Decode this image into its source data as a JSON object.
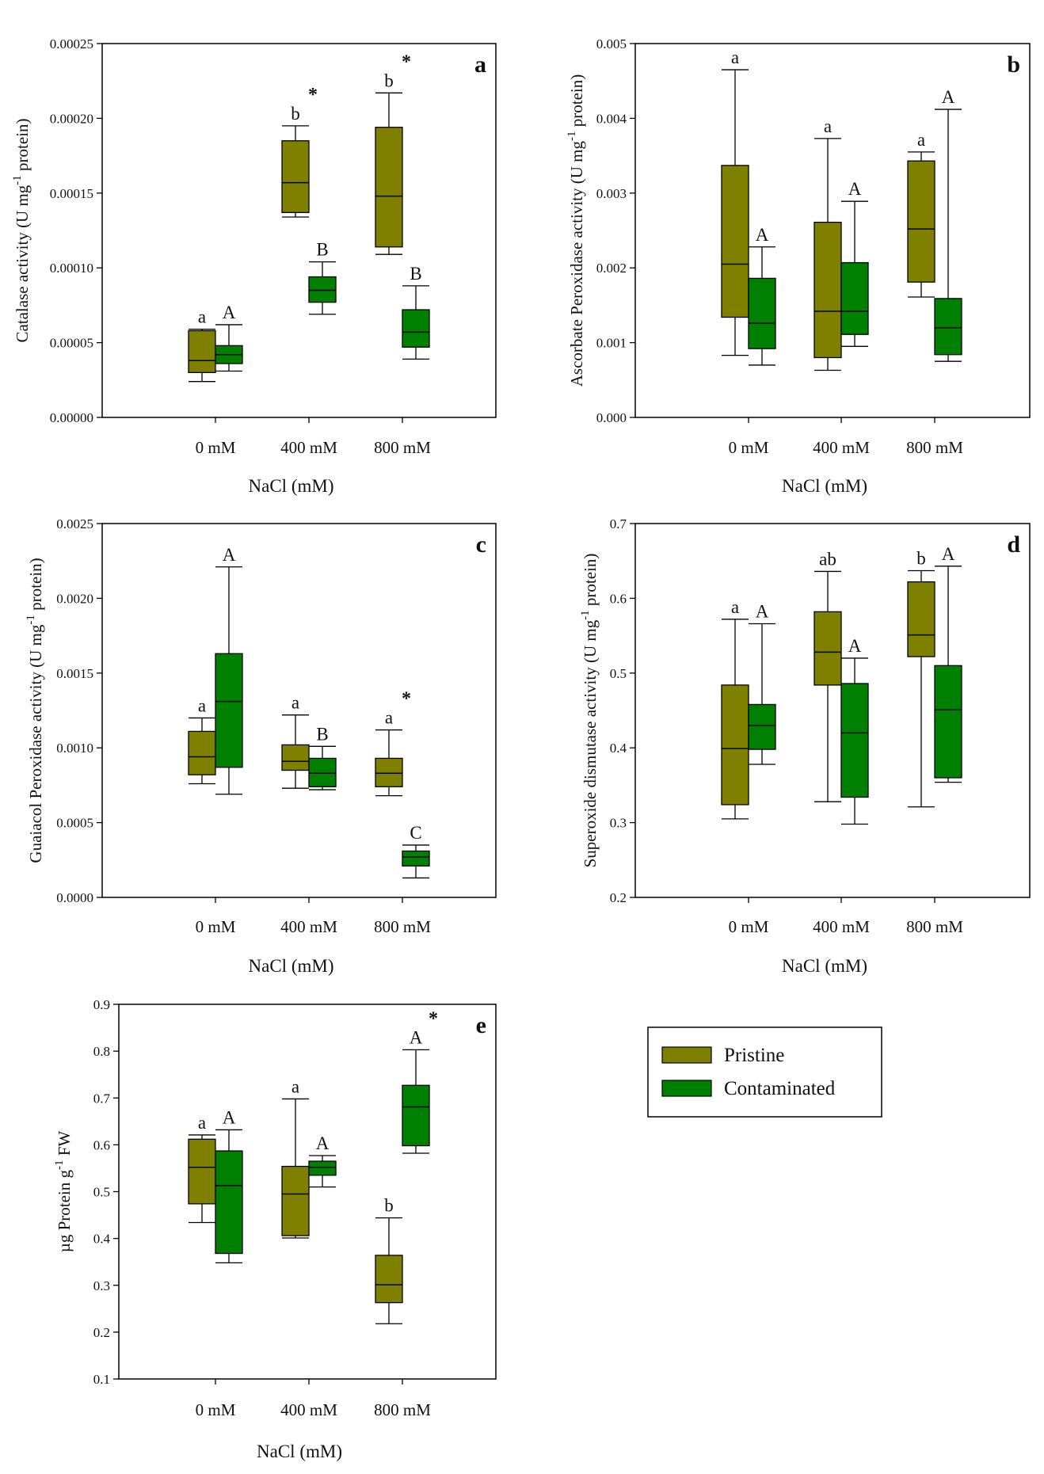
{
  "legend": {
    "items": [
      {
        "label": "Pristine",
        "color": "#808000"
      },
      {
        "label": "Contaminated",
        "color": "#008000"
      }
    ]
  },
  "chart_data": [
    {
      "type": "box",
      "panel": "a",
      "title": "",
      "xlabel": "NaCl (mM)",
      "ylabel_main": "Catalase activity (U mg",
      "ylabel_sup": "-1",
      "ylabel_tail": " protein)",
      "ylim": [
        0,
        0.00025
      ],
      "yticks": [
        "0.00000",
        "0.00005",
        "0.00010",
        "0.00015",
        "0.00020",
        "0.00025"
      ],
      "yticks_values": [
        0,
        5e-05,
        0.0001,
        0.00015,
        0.0002,
        0.00025
      ],
      "categories": [
        "0 mM",
        "400 mM",
        "800 mM"
      ],
      "series": [
        {
          "name": "Pristine",
          "boxes": [
            {
              "min": 2.4e-05,
              "q1": 3e-05,
              "median": 3.8e-05,
              "q3": 5.8e-05,
              "max": 5.9e-05,
              "label": "a",
              "star": ""
            },
            {
              "min": 0.000134,
              "q1": 0.000137,
              "median": 0.000157,
              "q3": 0.000185,
              "max": 0.000195,
              "label": "b",
              "star": "*"
            },
            {
              "min": 0.000109,
              "q1": 0.000114,
              "median": 0.000148,
              "q3": 0.000194,
              "max": 0.000217,
              "label": "b",
              "star": "*"
            }
          ]
        },
        {
          "name": "Contaminated",
          "boxes": [
            {
              "min": 3.1e-05,
              "q1": 3.6e-05,
              "median": 4.2e-05,
              "q3": 4.8e-05,
              "max": 6.2e-05,
              "label": "A",
              "star": ""
            },
            {
              "min": 6.9e-05,
              "q1": 7.7e-05,
              "median": 8.5e-05,
              "q3": 9.4e-05,
              "max": 0.000104,
              "label": "B",
              "star": ""
            },
            {
              "min": 3.9e-05,
              "q1": 4.7e-05,
              "median": 5.7e-05,
              "q3": 7.2e-05,
              "max": 8.8e-05,
              "label": "B",
              "star": ""
            }
          ]
        }
      ]
    },
    {
      "type": "box",
      "panel": "b",
      "title": "",
      "xlabel": "NaCl (mM)",
      "ylabel_main": "Ascorbate Peroxidase activity (U mg",
      "ylabel_sup": "-1",
      "ylabel_tail": " protein)",
      "ylim": [
        0,
        0.005
      ],
      "yticks": [
        "0.000",
        "0.001",
        "0.002",
        "0.003",
        "0.004",
        "0.005"
      ],
      "yticks_values": [
        0,
        0.001,
        0.002,
        0.003,
        0.004,
        0.005
      ],
      "categories": [
        "0 mM",
        "400 mM",
        "800 mM"
      ],
      "series": [
        {
          "name": "Pristine",
          "boxes": [
            {
              "min": 0.00083,
              "q1": 0.00134,
              "median": 0.00205,
              "q3": 0.00337,
              "max": 0.00465,
              "label": "a",
              "star": ""
            },
            {
              "min": 0.00063,
              "q1": 0.0008,
              "median": 0.00142,
              "q3": 0.00261,
              "max": 0.00373,
              "label": "a",
              "star": ""
            },
            {
              "min": 0.00161,
              "q1": 0.00181,
              "median": 0.00252,
              "q3": 0.00343,
              "max": 0.00355,
              "label": "a",
              "star": ""
            }
          ]
        },
        {
          "name": "Contaminated",
          "boxes": [
            {
              "min": 0.0007,
              "q1": 0.00092,
              "median": 0.00126,
              "q3": 0.00186,
              "max": 0.00228,
              "label": "A",
              "star": ""
            },
            {
              "min": 0.00095,
              "q1": 0.00111,
              "median": 0.00142,
              "q3": 0.00207,
              "max": 0.00289,
              "label": "A",
              "star": ""
            },
            {
              "min": 0.00075,
              "q1": 0.00084,
              "median": 0.0012,
              "q3": 0.00159,
              "max": 0.00412,
              "label": "A",
              "star": ""
            }
          ]
        }
      ]
    },
    {
      "type": "box",
      "panel": "c",
      "title": "",
      "xlabel": "NaCl (mM)",
      "ylabel_main": "Guaiacol Peroxidase activity (U mg",
      "ylabel_sup": "-1",
      "ylabel_tail": " protein)",
      "ylim": [
        0,
        0.0025
      ],
      "yticks": [
        "0.0000",
        "0.0005",
        "0.0010",
        "0.0015",
        "0.0020",
        "0.0025"
      ],
      "yticks_values": [
        0,
        0.0005,
        0.001,
        0.0015,
        0.002,
        0.0025
      ],
      "categories": [
        "0 mM",
        "400 mM",
        "800 mM"
      ],
      "series": [
        {
          "name": "Pristine",
          "boxes": [
            {
              "min": 0.00076,
              "q1": 0.00082,
              "median": 0.00094,
              "q3": 0.00111,
              "max": 0.0012,
              "label": "a",
              "star": ""
            },
            {
              "min": 0.00073,
              "q1": 0.00085,
              "median": 0.00091,
              "q3": 0.00102,
              "max": 0.00122,
              "label": "a",
              "star": ""
            },
            {
              "min": 0.00068,
              "q1": 0.00074,
              "median": 0.00083,
              "q3": 0.00093,
              "max": 0.00112,
              "label": "a",
              "star": "*"
            }
          ]
        },
        {
          "name": "Contaminated",
          "boxes": [
            {
              "min": 0.00069,
              "q1": 0.00087,
              "median": 0.00131,
              "q3": 0.00163,
              "max": 0.00221,
              "label": "A",
              "star": ""
            },
            {
              "min": 0.00072,
              "q1": 0.00074,
              "median": 0.00083,
              "q3": 0.00093,
              "max": 0.00101,
              "label": "B",
              "star": ""
            },
            {
              "min": 0.00013,
              "q1": 0.00021,
              "median": 0.00027,
              "q3": 0.00031,
              "max": 0.00035,
              "label": "C",
              "star": ""
            }
          ]
        }
      ]
    },
    {
      "type": "box",
      "panel": "d",
      "title": "",
      "xlabel": "NaCl (mM)",
      "ylabel_main": "Superoxide dismutase activity (U mg",
      "ylabel_sup": "-1",
      "ylabel_tail": " protein)",
      "ylim": [
        0.2,
        0.7
      ],
      "yticks": [
        "0.2",
        "0.3",
        "0.4",
        "0.5",
        "0.6",
        "0.7"
      ],
      "yticks_values": [
        0.2,
        0.3,
        0.4,
        0.5,
        0.6,
        0.7
      ],
      "categories": [
        "0 mM",
        "400 mM",
        "800 mM"
      ],
      "series": [
        {
          "name": "Pristine",
          "boxes": [
            {
              "min": 0.305,
              "q1": 0.324,
              "median": 0.399,
              "q3": 0.484,
              "max": 0.572,
              "label": "a",
              "star": ""
            },
            {
              "min": 0.328,
              "q1": 0.484,
              "median": 0.528,
              "q3": 0.582,
              "max": 0.636,
              "label": "ab",
              "star": ""
            },
            {
              "min": 0.321,
              "q1": 0.522,
              "median": 0.551,
              "q3": 0.622,
              "max": 0.637,
              "label": "b",
              "star": ""
            }
          ]
        },
        {
          "name": "Contaminated",
          "boxes": [
            {
              "min": 0.378,
              "q1": 0.398,
              "median": 0.43,
              "q3": 0.458,
              "max": 0.566,
              "label": "A",
              "star": ""
            },
            {
              "min": 0.298,
              "q1": 0.334,
              "median": 0.42,
              "q3": 0.486,
              "max": 0.52,
              "label": "A",
              "star": ""
            },
            {
              "min": 0.354,
              "q1": 0.36,
              "median": 0.451,
              "q3": 0.51,
              "max": 0.643,
              "label": "A",
              "star": ""
            }
          ]
        }
      ]
    },
    {
      "type": "box",
      "panel": "e",
      "title": "",
      "xlabel": "NaCl (mM)",
      "ylabel_main": "µg Protein g",
      "ylabel_sup": "-1",
      "ylabel_tail": " FW",
      "ylim": [
        0.1,
        0.9
      ],
      "yticks": [
        "0.1",
        "0.2",
        "0.3",
        "0.4",
        "0.5",
        "0.6",
        "0.7",
        "0.8",
        "0.9"
      ],
      "yticks_values": [
        0.1,
        0.2,
        0.3,
        0.4,
        0.5,
        0.6,
        0.7,
        0.8,
        0.9
      ],
      "categories": [
        "0 mM",
        "400 mM",
        "800 mM"
      ],
      "series": [
        {
          "name": "Pristine",
          "boxes": [
            {
              "min": 0.434,
              "q1": 0.474,
              "median": 0.552,
              "q3": 0.612,
              "max": 0.621,
              "label": "a",
              "star": ""
            },
            {
              "min": 0.401,
              "q1": 0.406,
              "median": 0.495,
              "q3": 0.554,
              "max": 0.698,
              "label": "a",
              "star": ""
            },
            {
              "min": 0.218,
              "q1": 0.263,
              "median": 0.301,
              "q3": 0.364,
              "max": 0.444,
              "label": "b",
              "star": ""
            }
          ]
        },
        {
          "name": "Contaminated",
          "boxes": [
            {
              "min": 0.348,
              "q1": 0.368,
              "median": 0.513,
              "q3": 0.587,
              "max": 0.632,
              "label": "A",
              "star": ""
            },
            {
              "min": 0.51,
              "q1": 0.535,
              "median": 0.552,
              "q3": 0.565,
              "max": 0.577,
              "label": "A",
              "star": ""
            },
            {
              "min": 0.582,
              "q1": 0.598,
              "median": 0.681,
              "q3": 0.727,
              "max": 0.803,
              "label": "A",
              "star": "*"
            }
          ]
        }
      ]
    }
  ]
}
